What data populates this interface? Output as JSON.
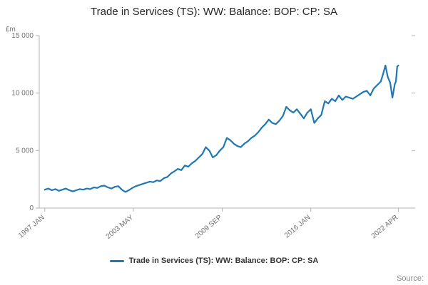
{
  "title": "Trade in Services (TS): WW: Balance: BOP: CP: SA",
  "y_unit_label": "£m",
  "source_label": "Source:",
  "legend": {
    "label": "Trade in Services (TS): WW: Balance: BOP: CP: SA",
    "color": "#1f77b4"
  },
  "chart_data": {
    "type": "line",
    "title": "Trade in Services (TS): WW: Balance: BOP: CP: SA",
    "xlabel": "",
    "ylabel": "£m",
    "grid": false,
    "legend_position": "bottom",
    "line_color": "#1f77b4",
    "axis_color": "#b3b3b3",
    "tick_label_color": "#707070",
    "ylim": [
      0,
      15000
    ],
    "xlim": [
      1996.6,
      2023.2
    ],
    "y_ticks": [
      {
        "value": 0,
        "label": "0"
      },
      {
        "value": 5000,
        "label": "5 000"
      },
      {
        "value": 10000,
        "label": "10 000"
      },
      {
        "value": 15000,
        "label": "15 000"
      }
    ],
    "x_ticks": [
      {
        "value": 1997.0,
        "label": "1997 JAN"
      },
      {
        "value": 2003.33,
        "label": "2003 MAY"
      },
      {
        "value": 2009.67,
        "label": "2009 SEP"
      },
      {
        "value": 2016.0,
        "label": "2016 JAN"
      },
      {
        "value": 2022.25,
        "label": "2022 APR"
      }
    ],
    "series": [
      {
        "name": "Trade in Services (TS): WW: Balance: BOP: CP: SA",
        "points": [
          [
            1997.0,
            1600
          ],
          [
            1997.25,
            1700
          ],
          [
            1997.5,
            1550
          ],
          [
            1997.75,
            1650
          ],
          [
            1998.0,
            1500
          ],
          [
            1998.25,
            1600
          ],
          [
            1998.5,
            1700
          ],
          [
            1998.75,
            1550
          ],
          [
            1999.0,
            1450
          ],
          [
            1999.25,
            1550
          ],
          [
            1999.5,
            1650
          ],
          [
            1999.75,
            1600
          ],
          [
            2000.0,
            1700
          ],
          [
            2000.25,
            1650
          ],
          [
            2000.5,
            1800
          ],
          [
            2000.75,
            1750
          ],
          [
            2001.0,
            1900
          ],
          [
            2001.25,
            1950
          ],
          [
            2001.5,
            1800
          ],
          [
            2001.75,
            1700
          ],
          [
            2002.0,
            1850
          ],
          [
            2002.25,
            1900
          ],
          [
            2002.5,
            1600
          ],
          [
            2002.75,
            1400
          ],
          [
            2003.0,
            1550
          ],
          [
            2003.25,
            1750
          ],
          [
            2003.5,
            1900
          ],
          [
            2003.75,
            2000
          ],
          [
            2004.0,
            2100
          ],
          [
            2004.25,
            2200
          ],
          [
            2004.5,
            2300
          ],
          [
            2004.75,
            2250
          ],
          [
            2005.0,
            2400
          ],
          [
            2005.25,
            2350
          ],
          [
            2005.5,
            2600
          ],
          [
            2005.75,
            2700
          ],
          [
            2006.0,
            3000
          ],
          [
            2006.25,
            3200
          ],
          [
            2006.5,
            3400
          ],
          [
            2006.75,
            3300
          ],
          [
            2007.0,
            3700
          ],
          [
            2007.25,
            3600
          ],
          [
            2007.5,
            3900
          ],
          [
            2007.75,
            4100
          ],
          [
            2008.0,
            4400
          ],
          [
            2008.25,
            4700
          ],
          [
            2008.5,
            5300
          ],
          [
            2008.75,
            5000
          ],
          [
            2009.0,
            4400
          ],
          [
            2009.25,
            4600
          ],
          [
            2009.5,
            5000
          ],
          [
            2009.75,
            5300
          ],
          [
            2010.0,
            6100
          ],
          [
            2010.25,
            5900
          ],
          [
            2010.5,
            5600
          ],
          [
            2010.75,
            5400
          ],
          [
            2011.0,
            5300
          ],
          [
            2011.25,
            5600
          ],
          [
            2011.5,
            5800
          ],
          [
            2011.75,
            6100
          ],
          [
            2012.0,
            6300
          ],
          [
            2012.25,
            6600
          ],
          [
            2012.5,
            7000
          ],
          [
            2012.75,
            7300
          ],
          [
            2013.0,
            7700
          ],
          [
            2013.25,
            7400
          ],
          [
            2013.5,
            7300
          ],
          [
            2013.75,
            7600
          ],
          [
            2014.0,
            8000
          ],
          [
            2014.25,
            8800
          ],
          [
            2014.5,
            8500
          ],
          [
            2014.75,
            8300
          ],
          [
            2015.0,
            8600
          ],
          [
            2015.25,
            8200
          ],
          [
            2015.5,
            7800
          ],
          [
            2015.75,
            8300
          ],
          [
            2016.0,
            8600
          ],
          [
            2016.25,
            7400
          ],
          [
            2016.5,
            7800
          ],
          [
            2016.75,
            8100
          ],
          [
            2017.0,
            9300
          ],
          [
            2017.25,
            9100
          ],
          [
            2017.5,
            9500
          ],
          [
            2017.75,
            9300
          ],
          [
            2018.0,
            9800
          ],
          [
            2018.25,
            9400
          ],
          [
            2018.5,
            9700
          ],
          [
            2018.75,
            9600
          ],
          [
            2019.0,
            9500
          ],
          [
            2019.25,
            9700
          ],
          [
            2019.5,
            9900
          ],
          [
            2019.75,
            10100
          ],
          [
            2020.0,
            10200
          ],
          [
            2020.25,
            9800
          ],
          [
            2020.5,
            10400
          ],
          [
            2020.75,
            10700
          ],
          [
            2021.0,
            11000
          ],
          [
            2021.17,
            11700
          ],
          [
            2021.33,
            12400
          ],
          [
            2021.5,
            11400
          ],
          [
            2021.67,
            10900
          ],
          [
            2021.83,
            9600
          ],
          [
            2022.0,
            10800
          ],
          [
            2022.08,
            11000
          ],
          [
            2022.17,
            12300
          ],
          [
            2022.25,
            12400
          ]
        ]
      }
    ]
  }
}
